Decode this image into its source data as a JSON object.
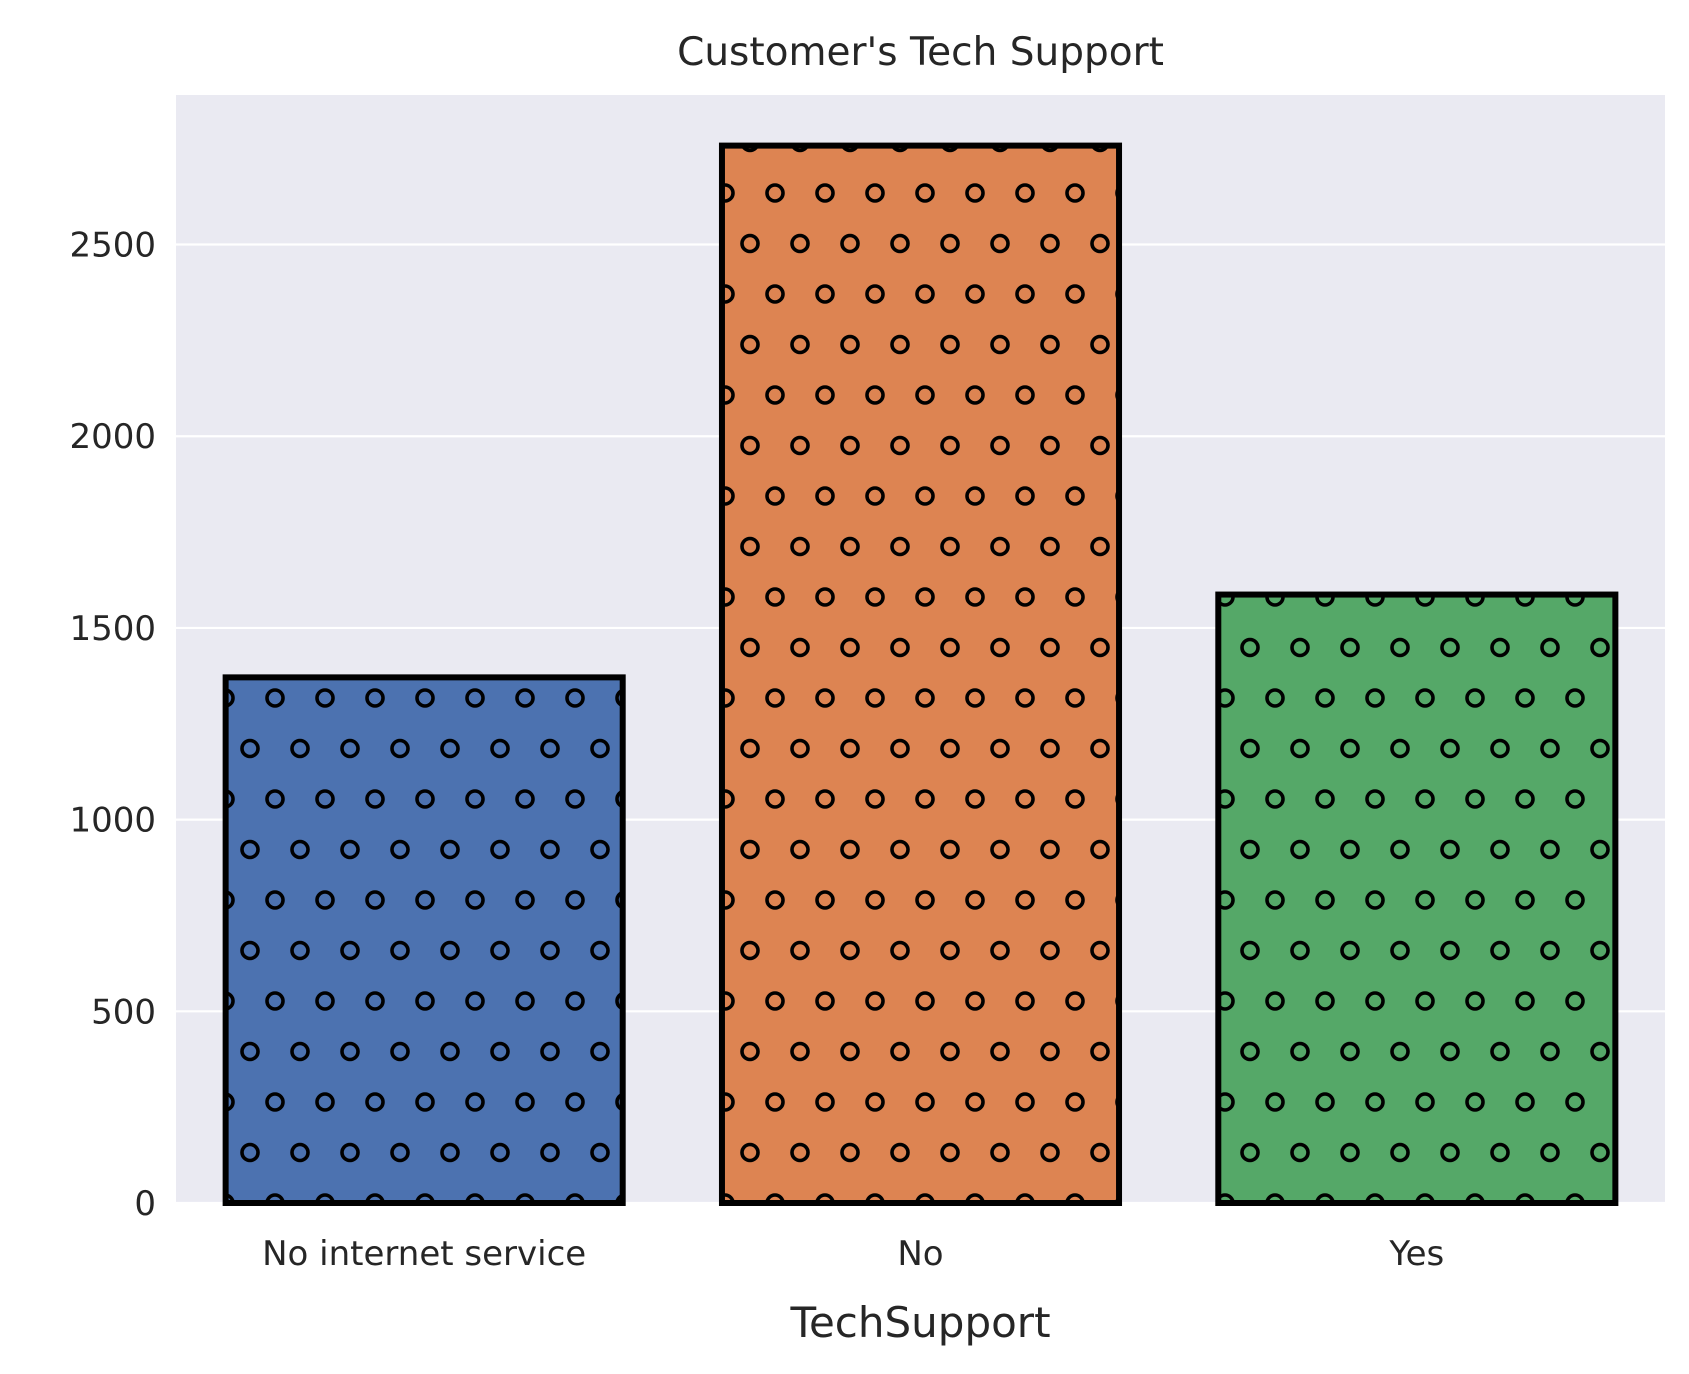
{
  "chart_data": {
    "type": "bar",
    "title": "Customer's Tech Support",
    "xlabel": "TechSupport",
    "ylabel": "",
    "categories": [
      "No internet service",
      "No",
      "Yes"
    ],
    "values": [
      1371,
      2758,
      1587
    ],
    "colors": [
      "#4c72b0",
      "#dd8452",
      "#55a868"
    ],
    "bar_edge_color": "#000000",
    "hatch": "circles",
    "ylim": [
      0,
      2890
    ],
    "yticks": [
      0,
      500,
      1000,
      1500,
      2000,
      2500
    ],
    "ytick_labels": [
      "0",
      "500",
      "1000",
      "1500",
      "2000",
      "2500"
    ],
    "grid": true,
    "grid_axis": "y",
    "background_color": "#eaeaf2",
    "grid_color": "#ffffff"
  }
}
